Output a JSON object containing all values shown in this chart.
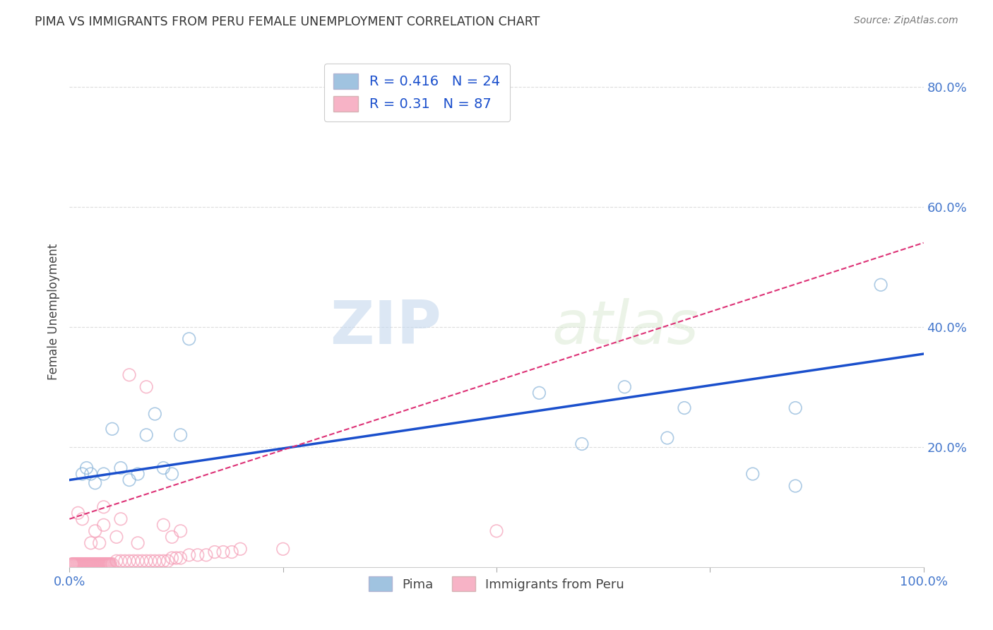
{
  "title": "PIMA VS IMMIGRANTS FROM PERU FEMALE UNEMPLOYMENT CORRELATION CHART",
  "source": "Source: ZipAtlas.com",
  "ylabel": "Female Unemployment",
  "xlim": [
    0.0,
    1.0
  ],
  "ylim": [
    0.0,
    0.85
  ],
  "x_ticks": [
    0.0,
    0.25,
    0.5,
    0.75,
    1.0
  ],
  "x_tick_labels": [
    "0.0%",
    "",
    "",
    "",
    "100.0%"
  ],
  "y_ticks": [
    0.2,
    0.4,
    0.6,
    0.8
  ],
  "y_tick_labels": [
    "20.0%",
    "40.0%",
    "60.0%",
    "80.0%"
  ],
  "pima_color": "#89b4d9",
  "peru_color": "#f5a0b8",
  "pima_R": 0.416,
  "pima_N": 24,
  "peru_R": 0.31,
  "peru_N": 87,
  "pima_scatter_x": [
    0.015,
    0.02,
    0.025,
    0.03,
    0.04,
    0.05,
    0.06,
    0.07,
    0.08,
    0.09,
    0.11,
    0.12,
    0.13,
    0.14,
    0.55,
    0.6,
    0.65,
    0.7,
    0.72,
    0.8,
    0.85,
    0.95,
    0.85,
    0.1
  ],
  "pima_scatter_y": [
    0.155,
    0.165,
    0.155,
    0.14,
    0.155,
    0.23,
    0.165,
    0.145,
    0.155,
    0.22,
    0.165,
    0.155,
    0.22,
    0.38,
    0.29,
    0.205,
    0.3,
    0.215,
    0.265,
    0.155,
    0.265,
    0.47,
    0.135,
    0.255
  ],
  "peru_scatter_x": [
    0.003,
    0.004,
    0.005,
    0.006,
    0.007,
    0.008,
    0.009,
    0.01,
    0.011,
    0.012,
    0.013,
    0.014,
    0.015,
    0.016,
    0.017,
    0.018,
    0.019,
    0.02,
    0.021,
    0.022,
    0.023,
    0.024,
    0.025,
    0.026,
    0.027,
    0.028,
    0.029,
    0.03,
    0.031,
    0.032,
    0.033,
    0.034,
    0.035,
    0.036,
    0.037,
    0.038,
    0.039,
    0.04,
    0.041,
    0.042,
    0.043,
    0.044,
    0.045,
    0.046,
    0.047,
    0.048,
    0.05,
    0.055,
    0.06,
    0.065,
    0.07,
    0.075,
    0.08,
    0.085,
    0.09,
    0.095,
    0.1,
    0.105,
    0.11,
    0.115,
    0.12,
    0.125,
    0.13,
    0.14,
    0.15,
    0.16,
    0.17,
    0.18,
    0.19,
    0.2,
    0.25,
    0.12,
    0.08,
    0.13,
    0.07,
    0.09,
    0.5,
    0.11,
    0.06,
    0.04,
    0.03,
    0.025,
    0.015,
    0.01,
    0.035,
    0.055,
    0.04
  ],
  "peru_scatter_y": [
    0.005,
    0.005,
    0.005,
    0.005,
    0.005,
    0.005,
    0.005,
    0.005,
    0.005,
    0.005,
    0.005,
    0.005,
    0.005,
    0.005,
    0.005,
    0.005,
    0.005,
    0.005,
    0.005,
    0.005,
    0.005,
    0.005,
    0.005,
    0.005,
    0.005,
    0.005,
    0.005,
    0.005,
    0.005,
    0.005,
    0.005,
    0.005,
    0.005,
    0.005,
    0.005,
    0.005,
    0.005,
    0.005,
    0.005,
    0.005,
    0.005,
    0.005,
    0.005,
    0.005,
    0.005,
    0.005,
    0.005,
    0.01,
    0.01,
    0.01,
    0.01,
    0.01,
    0.01,
    0.01,
    0.01,
    0.01,
    0.01,
    0.01,
    0.01,
    0.01,
    0.015,
    0.015,
    0.015,
    0.02,
    0.02,
    0.02,
    0.025,
    0.025,
    0.025,
    0.03,
    0.03,
    0.05,
    0.04,
    0.06,
    0.32,
    0.3,
    0.06,
    0.07,
    0.08,
    0.07,
    0.06,
    0.04,
    0.08,
    0.09,
    0.04,
    0.05,
    0.1
  ],
  "background_color": "#ffffff",
  "grid_color": "#dddddd",
  "watermark_zip": "ZIP",
  "watermark_atlas": "atlas",
  "pima_line_color": "#1a4fcc",
  "pima_line_intercept": 0.145,
  "pima_line_slope": 0.21,
  "peru_line_color": "#dd3377",
  "peru_line_intercept": 0.08,
  "peru_line_slope": 0.46,
  "tick_color": "#4477cc"
}
